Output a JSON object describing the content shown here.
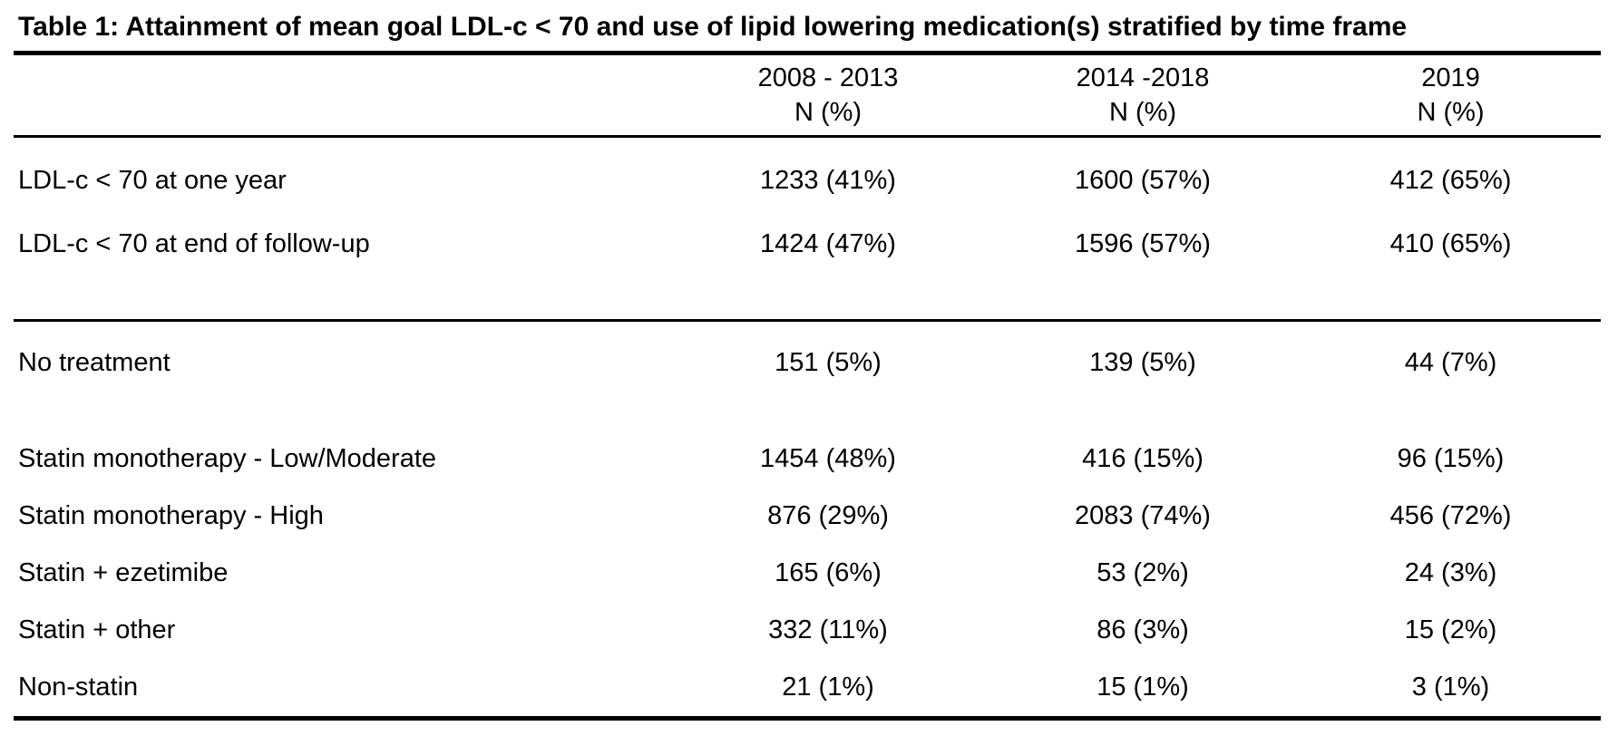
{
  "page": {
    "background": "#ffffff",
    "text_color": "#000000"
  },
  "table": {
    "title": "Table 1: Attainment of mean goal LDL-c < 70 and use of lipid lowering medication(s) stratified by time frame",
    "columns": [
      {
        "period": "2008 - 2013",
        "unit": "N (%)"
      },
      {
        "period": "2014 -2018",
        "unit": "N (%)"
      },
      {
        "period": "2019",
        "unit": "N (%)"
      }
    ],
    "rows": [
      {
        "label": "LDL-c < 70 at one year",
        "values": [
          "1233 (41%)",
          "1600 (57%)",
          "412 (65%)"
        ]
      },
      {
        "label": "LDL-c < 70 at end of follow-up",
        "values": [
          "1424 (47%)",
          "1596 (57%)",
          "410 (65%)"
        ]
      },
      {
        "label": "No treatment",
        "values": [
          "151 (5%)",
          "139 (5%)",
          "44 (7%)"
        ]
      },
      {
        "label": "Statin monotherapy - Low/Moderate",
        "values": [
          "1454 (48%)",
          "416 (15%)",
          "96 (15%)"
        ]
      },
      {
        "label": "Statin monotherapy - High",
        "values": [
          "876 (29%)",
          "2083 (74%)",
          "456 (72%)"
        ]
      },
      {
        "label": "Statin + ezetimibe",
        "values": [
          "165 (6%)",
          "53 (2%)",
          "24 (3%)"
        ]
      },
      {
        "label": "Statin + other",
        "values": [
          "332 (11%)",
          "86 (3%)",
          "15 (2%)"
        ]
      },
      {
        "label": "Non-statin",
        "values": [
          "21 (1%)",
          "15 (1%)",
          "3 (1%)"
        ]
      }
    ]
  },
  "chart_data": {
    "type": "table",
    "title": "Table 1: Attainment of mean goal LDL-c < 70 and use of lipid lowering medication(s) stratified by time frame",
    "columns": [
      "",
      "2008 - 2013 N (%)",
      "2014 -2018 N (%)",
      "2019 N (%)"
    ],
    "rows": [
      [
        "LDL-c < 70 at one year",
        "1233 (41%)",
        "1600 (57%)",
        "412 (65%)"
      ],
      [
        "LDL-c < 70 at end of follow-up",
        "1424 (47%)",
        "1596 (57%)",
        "410 (65%)"
      ],
      [
        "No treatment",
        "151 (5%)",
        "139 (5%)",
        "44 (7%)"
      ],
      [
        "Statin monotherapy - Low/Moderate",
        "1454 (48%)",
        "416 (15%)",
        "96 (15%)"
      ],
      [
        "Statin monotherapy - High",
        "876 (29%)",
        "2083 (74%)",
        "456 (72%)"
      ],
      [
        "Statin + ezetimibe",
        "165 (6%)",
        "53 (2%)",
        "24 (3%)"
      ],
      [
        "Statin + other",
        "332 (11%)",
        "86 (3%)",
        "15 (2%)"
      ],
      [
        "Non-statin",
        "21 (1%)",
        "15 (1%)",
        "3 (1%)"
      ]
    ]
  }
}
